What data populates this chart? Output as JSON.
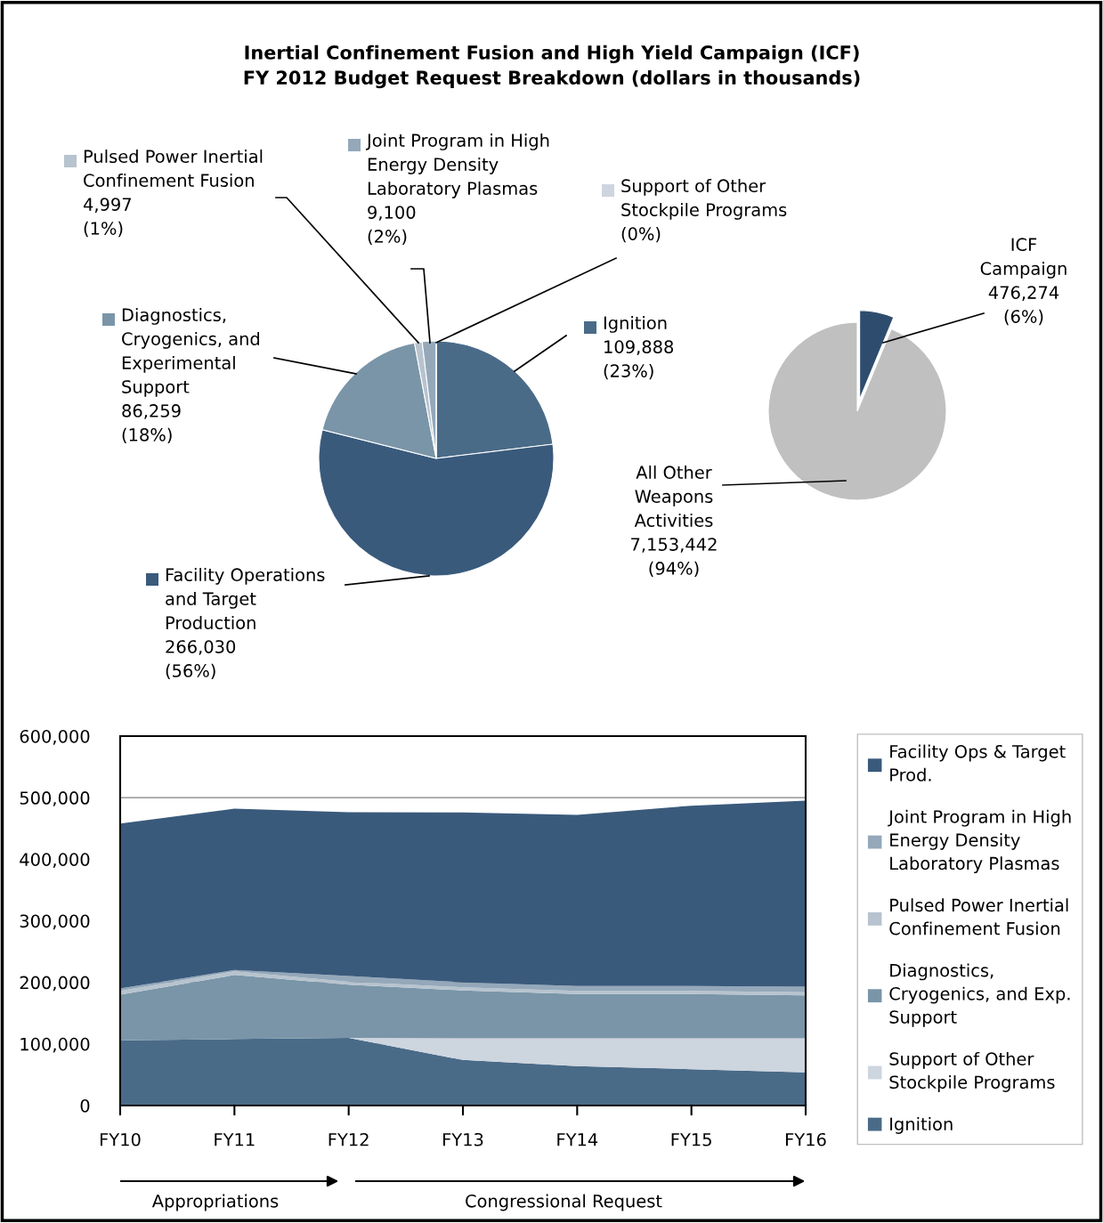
{
  "chart_data": [
    {
      "type": "pie",
      "title": "Inertial Confinement Fusion and High Yield Campaign (ICF)\nFY 2012 Budget Request Breakdown (dollars in thousands)",
      "categories": [
        "Ignition",
        "Facility Operations\nand Target\nProduction",
        "Diagnostics,\nCryogenics, and\nExperimental\nSupport",
        "Pulsed Power Inertial\nConfinement Fusion",
        "Joint Program in High\nEnergy Density\nLaboratory Plasmas",
        "Support of Other\nStockpile Programs"
      ],
      "values": [
        109888,
        266030,
        86259,
        4997,
        9100,
        0
      ],
      "value_labels": [
        "109,888\n(23%)",
        "266,030\n(56%)",
        "86,259\n(18%)",
        "4,997\n(1%)",
        "9,100\n(2%)",
        "(0%)"
      ],
      "colors": [
        "#4a6b88",
        "#3a5a7c",
        "#7a95a8",
        "#b7c3ce",
        "#94a8ba",
        "#cdd5df"
      ],
      "legend": "left"
    },
    {
      "type": "pie",
      "categories": [
        "ICF\nCampaign",
        "All Other\nWeapons\nActivities"
      ],
      "values": [
        476274,
        7153442
      ],
      "value_labels": [
        "476,274\n(6%)",
        "7,153,442\n(94%)"
      ],
      "colors": [
        "#2e4d6e",
        "#c0c0c0"
      ]
    },
    {
      "type": "area",
      "stacked": true,
      "categories": [
        "FY10",
        "FY11",
        "FY12",
        "FY13",
        "FY14",
        "FY15",
        "FY16"
      ],
      "ylim": [
        0,
        600000
      ],
      "yticks": [
        {
          "value": 0,
          "label": "0"
        },
        {
          "value": 100000,
          "label": "100,000"
        },
        {
          "value": 200000,
          "label": "200,000"
        },
        {
          "value": 300000,
          "label": "300,000"
        },
        {
          "value": 400000,
          "label": "400,000"
        },
        {
          "value": 500000,
          "label": "500,000"
        },
        {
          "value": 600000,
          "label": "600,000"
        }
      ],
      "grid": "y",
      "legend": "right",
      "series": [
        {
          "name": "Ignition",
          "color": "#4a6b88",
          "values": [
            106000,
            108000,
            109888,
            74000,
            64000,
            59000,
            54000
          ]
        },
        {
          "name": "Support of Other\nStockpile Programs",
          "color": "#cdd5df",
          "values": [
            0,
            0,
            0,
            35000,
            45000,
            50000,
            55000
          ]
        },
        {
          "name": "Diagnostics,\nCryogenics, and Exp.\nSupport",
          "color": "#7a95a8",
          "values": [
            74000,
            104000,
            86259,
            78000,
            72000,
            72000,
            70000
          ]
        },
        {
          "name": "Pulsed Power Inertial\nConfinement Fusion",
          "color": "#b7c3ce",
          "values": [
            6000,
            6000,
            4997,
            5000,
            5000,
            5000,
            5000
          ]
        },
        {
          "name": "Joint Program in High\nEnergy Density\nLaboratory Plasmas",
          "color": "#94a8ba",
          "values": [
            4000,
            2000,
            9100,
            8000,
            8000,
            8000,
            9000
          ]
        },
        {
          "name": "Facility Ops & Target\nProd.",
          "color": "#3a5a7c",
          "values": [
            268000,
            262000,
            266030,
            276000,
            278000,
            293000,
            302000
          ]
        }
      ],
      "annotations": [
        "Appropriations",
        "Congressional Request"
      ]
    }
  ]
}
